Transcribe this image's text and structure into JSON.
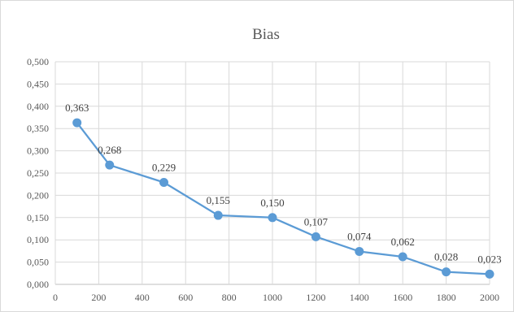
{
  "chart_data": {
    "type": "scatter",
    "title": "Bias",
    "xlim": [
      0,
      2000
    ],
    "ylim": [
      0,
      0.5
    ],
    "x_ticks": [
      0,
      200,
      400,
      600,
      800,
      1000,
      1200,
      1400,
      1600,
      1800,
      2000
    ],
    "y_ticks": [
      0,
      0.05,
      0.1,
      0.15,
      0.2,
      0.25,
      0.3,
      0.35,
      0.4,
      0.45,
      0.5
    ],
    "x_tick_labels": [
      "0",
      "200",
      "400",
      "600",
      "800",
      "1000",
      "1200",
      "1400",
      "1600",
      "1800",
      "2000"
    ],
    "y_tick_labels": [
      "0,000",
      "0,050",
      "0,100",
      "0,150",
      "0,200",
      "0,250",
      "0,300",
      "0,350",
      "0,400",
      "0,450",
      "0,500"
    ],
    "grid": true,
    "series": [
      {
        "color": "#5B9BD5",
        "points": [
          {
            "x": 100,
            "y": 0.363,
            "label": "0,363"
          },
          {
            "x": 250,
            "y": 0.268,
            "label": "0,268"
          },
          {
            "x": 500,
            "y": 0.229,
            "label": "0,229"
          },
          {
            "x": 750,
            "y": 0.155,
            "label": "0,155"
          },
          {
            "x": 1000,
            "y": 0.15,
            "label": "0,150"
          },
          {
            "x": 1200,
            "y": 0.107,
            "label": "0,107"
          },
          {
            "x": 1400,
            "y": 0.074,
            "label": "0,074"
          },
          {
            "x": 1600,
            "y": 0.062,
            "label": "0,062"
          },
          {
            "x": 1800,
            "y": 0.028,
            "label": "0,028"
          },
          {
            "x": 2000,
            "y": 0.023,
            "label": "0,023"
          }
        ]
      }
    ]
  }
}
